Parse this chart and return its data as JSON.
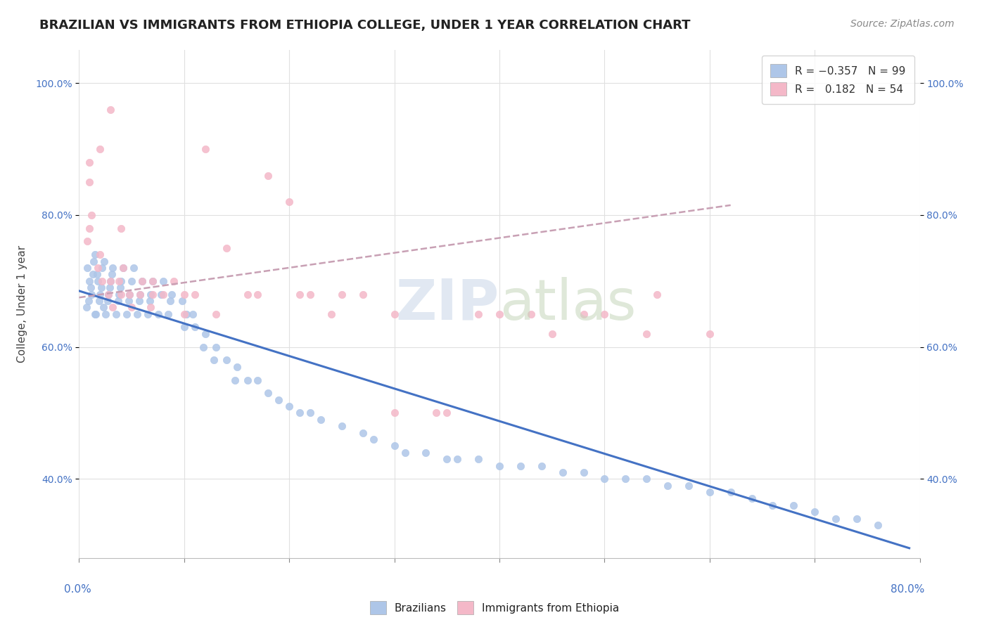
{
  "title": "BRAZILIAN VS IMMIGRANTS FROM ETHIOPIA COLLEGE, UNDER 1 YEAR CORRELATION CHART",
  "source": "Source: ZipAtlas.com",
  "ylabel": "College, Under 1 year",
  "xlim": [
    0.0,
    0.8
  ],
  "ylim": [
    0.28,
    1.05
  ],
  "blue_scatter_color": "#aec6e8",
  "pink_scatter_color": "#f4b8c8",
  "blue_line_color": "#4472c4",
  "pink_line_color": "#c8a0b4",
  "background_color": "#ffffff",
  "grid_color": "#e0e0e0",
  "blue_R": -0.357,
  "blue_N": 99,
  "pink_R": 0.182,
  "pink_N": 54,
  "blue_x": [
    0.01,
    0.012,
    0.008,
    0.015,
    0.009,
    0.011,
    0.013,
    0.007,
    0.014,
    0.02,
    0.018,
    0.022,
    0.016,
    0.019,
    0.021,
    0.017,
    0.023,
    0.024,
    0.015,
    0.028,
    0.03,
    0.032,
    0.025,
    0.027,
    0.029,
    0.031,
    0.038,
    0.04,
    0.042,
    0.035,
    0.037,
    0.039,
    0.048,
    0.05,
    0.052,
    0.045,
    0.047,
    0.058,
    0.06,
    0.055,
    0.057,
    0.068,
    0.07,
    0.065,
    0.067,
    0.078,
    0.08,
    0.075,
    0.088,
    0.085,
    0.087,
    0.1,
    0.102,
    0.098,
    0.11,
    0.108,
    0.12,
    0.118,
    0.13,
    0.128,
    0.14,
    0.15,
    0.148,
    0.16,
    0.17,
    0.18,
    0.19,
    0.2,
    0.21,
    0.22,
    0.23,
    0.25,
    0.27,
    0.28,
    0.3,
    0.31,
    0.33,
    0.35,
    0.36,
    0.38,
    0.4,
    0.42,
    0.44,
    0.46,
    0.48,
    0.5,
    0.52,
    0.54,
    0.56,
    0.58,
    0.6,
    0.62,
    0.64,
    0.66,
    0.68,
    0.7,
    0.72,
    0.74,
    0.76
  ],
  "blue_y": [
    0.7,
    0.68,
    0.72,
    0.65,
    0.67,
    0.69,
    0.71,
    0.66,
    0.73,
    0.68,
    0.7,
    0.72,
    0.65,
    0.67,
    0.69,
    0.71,
    0.66,
    0.73,
    0.74,
    0.68,
    0.7,
    0.72,
    0.65,
    0.67,
    0.69,
    0.71,
    0.68,
    0.7,
    0.72,
    0.65,
    0.67,
    0.69,
    0.68,
    0.7,
    0.72,
    0.65,
    0.67,
    0.68,
    0.7,
    0.65,
    0.67,
    0.68,
    0.7,
    0.65,
    0.67,
    0.68,
    0.7,
    0.65,
    0.68,
    0.65,
    0.67,
    0.63,
    0.65,
    0.67,
    0.63,
    0.65,
    0.62,
    0.6,
    0.6,
    0.58,
    0.58,
    0.57,
    0.55,
    0.55,
    0.55,
    0.53,
    0.52,
    0.51,
    0.5,
    0.5,
    0.49,
    0.48,
    0.47,
    0.46,
    0.45,
    0.44,
    0.44,
    0.43,
    0.43,
    0.43,
    0.42,
    0.42,
    0.42,
    0.41,
    0.41,
    0.4,
    0.4,
    0.4,
    0.39,
    0.39,
    0.38,
    0.38,
    0.37,
    0.36,
    0.36,
    0.35,
    0.34,
    0.34,
    0.33
  ],
  "pink_x": [
    0.01,
    0.012,
    0.008,
    0.02,
    0.018,
    0.022,
    0.03,
    0.028,
    0.032,
    0.04,
    0.038,
    0.042,
    0.05,
    0.048,
    0.06,
    0.058,
    0.07,
    0.068,
    0.08,
    0.09,
    0.1,
    0.11,
    0.12,
    0.14,
    0.16,
    0.18,
    0.2,
    0.22,
    0.24,
    0.27,
    0.3,
    0.34,
    0.38,
    0.43,
    0.48,
    0.54,
    0.6,
    0.55,
    0.5,
    0.45,
    0.4,
    0.35,
    0.3,
    0.25,
    0.21,
    0.17,
    0.13,
    0.1,
    0.07,
    0.04,
    0.03,
    0.02,
    0.01,
    0.01
  ],
  "pink_y": [
    0.78,
    0.8,
    0.76,
    0.74,
    0.72,
    0.7,
    0.7,
    0.68,
    0.66,
    0.68,
    0.7,
    0.72,
    0.66,
    0.68,
    0.7,
    0.68,
    0.68,
    0.66,
    0.68,
    0.7,
    0.68,
    0.68,
    0.9,
    0.75,
    0.68,
    0.86,
    0.82,
    0.68,
    0.65,
    0.68,
    0.65,
    0.5,
    0.65,
    0.65,
    0.65,
    0.62,
    0.62,
    0.68,
    0.65,
    0.62,
    0.65,
    0.5,
    0.5,
    0.68,
    0.68,
    0.68,
    0.65,
    0.65,
    0.7,
    0.78,
    0.96,
    0.9,
    0.85,
    0.88
  ],
  "blue_line_x": [
    0.0,
    0.79
  ],
  "blue_line_y": [
    0.685,
    0.295
  ],
  "pink_line_x": [
    0.0,
    0.62
  ],
  "pink_line_y": [
    0.675,
    0.815
  ]
}
